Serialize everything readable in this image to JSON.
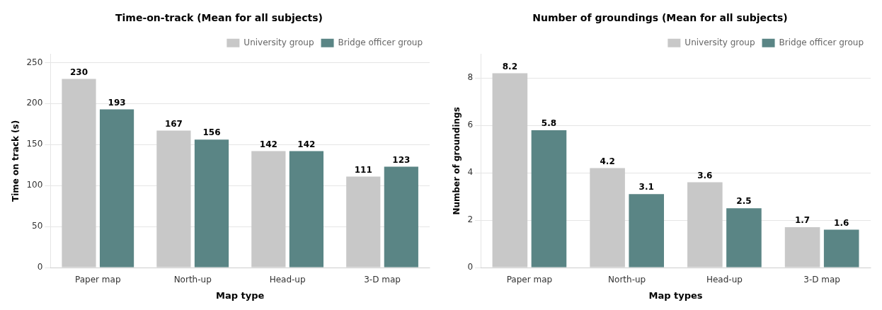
{
  "chart_data": [
    {
      "type": "bar",
      "title": "Time-on-track (Mean for all subjects)",
      "x_label": "Map type",
      "y_label": "Time on track (s)",
      "categories": [
        "Paper map",
        "North-up",
        "Head-up",
        "3-D map"
      ],
      "series": [
        {
          "name": "University group",
          "color": "#c8c8c8",
          "values": [
            230,
            167,
            142,
            111
          ]
        },
        {
          "name": "Bridge officer group",
          "color": "#5a8585",
          "values": [
            193,
            156,
            142,
            123
          ]
        }
      ],
      "ylim": [
        0,
        260
      ],
      "yticks": [
        0,
        50,
        100,
        150,
        200,
        250
      ],
      "grid": true,
      "legend": "upper right",
      "data_labels": true
    },
    {
      "type": "bar",
      "title": "Number of groundings (Mean for all subjects)",
      "x_label": "Map types",
      "y_label": "Number of groundings",
      "categories": [
        "Paper map",
        "North-up",
        "Head-up",
        "3-D map"
      ],
      "series": [
        {
          "name": "University group",
          "color": "#c8c8c8",
          "values": [
            8.2,
            4.2,
            3.6,
            1.7
          ]
        },
        {
          "name": "Bridge officer group",
          "color": "#5a8585",
          "values": [
            5.8,
            3.1,
            2.5,
            1.6
          ]
        }
      ],
      "ylim": [
        0,
        9
      ],
      "yticks": [
        0,
        2,
        4,
        6,
        8
      ],
      "grid": true,
      "legend": "upper right",
      "data_labels": true
    }
  ]
}
